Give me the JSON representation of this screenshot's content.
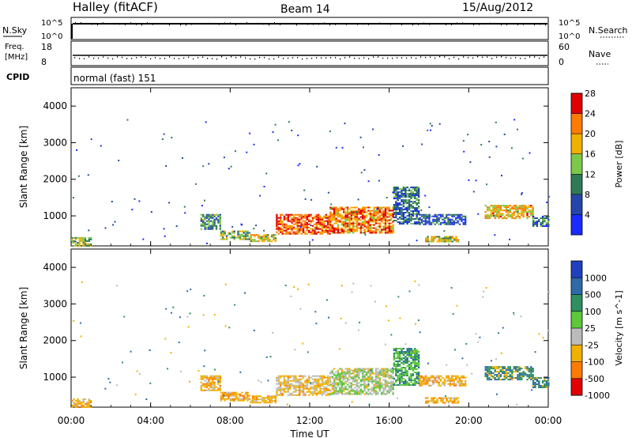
{
  "header": {
    "station": "Halley (fitACF)",
    "beam": "Beam 14",
    "date": "15/Aug/2012"
  },
  "param_panels": {
    "nsky": {
      "label": "N.Sky",
      "ticks": [
        "10^5",
        "10^0"
      ]
    },
    "nsearch": {
      "label": "N.Search",
      "ticks": [
        "10^5",
        "10^0"
      ]
    },
    "freq": {
      "label_line1": "Freq.",
      "label_line2": "[MHz]",
      "ticks": [
        "18",
        "8"
      ]
    },
    "nave": {
      "label": "Nave",
      "ticks": [
        "60",
        "0"
      ]
    },
    "cpid": {
      "label": "CPID",
      "value": "normal (fast) 151"
    }
  },
  "chart_data": [
    {
      "type": "heatmap",
      "title": "",
      "xlabel": "Time UT",
      "ylabel": "Slant Range [km]",
      "x_ticks": [
        "00:00",
        "04:00",
        "08:00",
        "12:00",
        "16:00",
        "20:00",
        "00:00"
      ],
      "xlim_hours": [
        0,
        24
      ],
      "ylim": [
        180,
        4500
      ],
      "y_ticks": [
        1000,
        2000,
        3000,
        4000
      ],
      "colorbar": {
        "label": "Power [dB]",
        "ticks": [
          "4",
          "8",
          "12",
          "16",
          "20",
          "24",
          "28"
        ],
        "range": [
          0,
          30
        ],
        "colors": [
          "#1a2bff",
          "#2546a8",
          "#2f7a55",
          "#7cc94a",
          "#f0b000",
          "#ff7a00",
          "#e00000"
        ]
      },
      "regions": [
        {
          "t0": 0.0,
          "t1": 1.0,
          "r0": 200,
          "r1": 420,
          "level": 0.5
        },
        {
          "t0": 6.5,
          "t1": 7.5,
          "r0": 650,
          "r1": 1050,
          "level": 0.35
        },
        {
          "t0": 7.5,
          "t1": 9.0,
          "r0": 350,
          "r1": 600,
          "level": 0.45
        },
        {
          "t0": 9.0,
          "t1": 10.3,
          "r0": 300,
          "r1": 500,
          "level": 0.6
        },
        {
          "t0": 10.3,
          "t1": 13.0,
          "r0": 500,
          "r1": 1050,
          "level": 0.85
        },
        {
          "t0": 13.0,
          "t1": 16.2,
          "r0": 550,
          "r1": 1250,
          "level": 0.75
        },
        {
          "t0": 16.2,
          "t1": 17.5,
          "r0": 800,
          "r1": 1800,
          "level": 0.3
        },
        {
          "t0": 17.5,
          "t1": 19.8,
          "r0": 750,
          "r1": 1050,
          "level": 0.25
        },
        {
          "t0": 17.8,
          "t1": 19.5,
          "r0": 320,
          "r1": 450,
          "level": 0.55
        },
        {
          "t0": 20.8,
          "t1": 23.2,
          "r0": 950,
          "r1": 1300,
          "level": 0.65
        },
        {
          "t0": 23.2,
          "t1": 24.0,
          "r0": 700,
          "r1": 1000,
          "level": 0.3
        }
      ]
    },
    {
      "type": "heatmap",
      "title": "",
      "xlabel": "Time UT",
      "ylabel": "Slant Range [km]",
      "x_ticks": [
        "00:00",
        "04:00",
        "08:00",
        "12:00",
        "16:00",
        "20:00",
        "00:00"
      ],
      "xlim_hours": [
        0,
        24
      ],
      "ylim": [
        180,
        4500
      ],
      "y_ticks": [
        1000,
        2000,
        3000,
        4000
      ],
      "colorbar": {
        "label": "Velocity [m s^-1]",
        "ticks": [
          "1000",
          "500",
          "100",
          "25",
          "-25",
          "-100",
          "-500",
          "-1000"
        ],
        "range": [
          -1000,
          1000
        ],
        "colors": [
          "#2040c0",
          "#2e6aa8",
          "#2f8f60",
          "#5cc83a",
          "#bbbbbb",
          "#f0b000",
          "#ff7a00",
          "#e00000"
        ]
      },
      "regions": [
        {
          "t0": 0.0,
          "t1": 1.0,
          "r0": 200,
          "r1": 420,
          "level": 0.5
        },
        {
          "t0": 6.5,
          "t1": 7.5,
          "r0": 650,
          "r1": 1050,
          "level": 0.35
        },
        {
          "t0": 7.5,
          "t1": 9.0,
          "r0": 350,
          "r1": 600,
          "level": 0.45
        },
        {
          "t0": 9.0,
          "t1": 10.3,
          "r0": 300,
          "r1": 500,
          "level": 0.6
        },
        {
          "t0": 10.3,
          "t1": 13.0,
          "r0": 500,
          "r1": 1050,
          "level": 0.85
        },
        {
          "t0": 13.0,
          "t1": 16.2,
          "r0": 550,
          "r1": 1250,
          "level": 0.75
        },
        {
          "t0": 16.2,
          "t1": 17.5,
          "r0": 800,
          "r1": 1800,
          "level": 0.3
        },
        {
          "t0": 17.5,
          "t1": 19.8,
          "r0": 750,
          "r1": 1050,
          "level": 0.25
        },
        {
          "t0": 17.8,
          "t1": 19.5,
          "r0": 320,
          "r1": 450,
          "level": 0.55
        },
        {
          "t0": 20.8,
          "t1": 23.2,
          "r0": 950,
          "r1": 1300,
          "level": 0.65
        },
        {
          "t0": 23.2,
          "t1": 24.0,
          "r0": 700,
          "r1": 1000,
          "level": 0.3
        }
      ]
    }
  ]
}
